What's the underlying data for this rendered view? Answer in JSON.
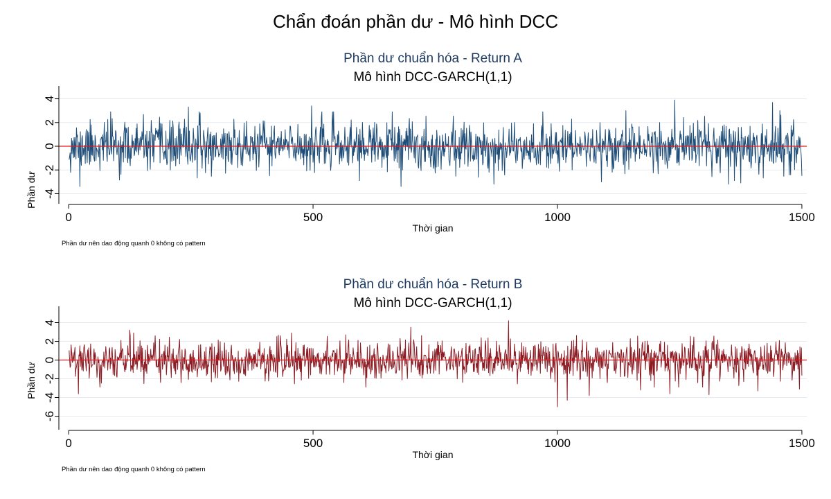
{
  "page_title": "Chẩn đoán phần dư - Mô hình DCC",
  "colors": {
    "series_a": "#1f4e79",
    "series_b": "#8b1c24",
    "zero_line": "#e41a1c",
    "grid": "#e6e9ef"
  },
  "chart_data": [
    {
      "type": "line",
      "title": "Phần dư chuẩn hóa - Return A",
      "subtitle": "Mô hình DCC-GARCH(1,1)",
      "xlabel": "Thời gian",
      "ylabel": "Phần dư",
      "note": "Phần dư nên dao động quanh 0 không có pattern",
      "xlim": [
        -20,
        1510
      ],
      "ylim": [
        -4.5,
        4.5
      ],
      "xticks": [
        0,
        500,
        1000,
        1500
      ],
      "yticks": [
        4,
        2,
        0,
        -2,
        -4
      ],
      "grid": true,
      "reference_line": 0,
      "series": [
        {
          "n": 1500,
          "seed": 11,
          "color": "#1f4e79",
          "extremes": [
            [
              23,
              -3.4
            ],
            [
              86,
              2.9
            ],
            [
              245,
              3.3
            ],
            [
              497,
              3.4
            ],
            [
              680,
              -3.4
            ],
            [
              870,
              -3.2
            ],
            [
              1090,
              -3.0
            ],
            [
              1140,
              3.0
            ],
            [
              1240,
              3.9
            ],
            [
              1350,
              -3.2
            ],
            [
              1375,
              -3.1
            ],
            [
              1440,
              3.7
            ],
            [
              1455,
              3.0
            ],
            [
              1500,
              -2.5
            ]
          ]
        }
      ]
    },
    {
      "type": "line",
      "title": "Phần dư chuẩn hóa - Return B",
      "subtitle": "Mô hình DCC-GARCH(1,1)",
      "xlabel": "Thời gian",
      "ylabel": "Phần dư",
      "note": "Phần dư nên dao động quanh 0 không có pattern",
      "xlim": [
        -20,
        1510
      ],
      "ylim": [
        -7,
        5
      ],
      "xticks": [
        0,
        500,
        1000,
        1500
      ],
      "yticks": [
        4,
        2,
        0,
        -2,
        -4,
        -6
      ],
      "grid": true,
      "reference_line": 0,
      "series": [
        {
          "n": 1500,
          "seed": 29,
          "color": "#8b1c24",
          "extremes": [
            [
              20,
              -3.6
            ],
            [
              125,
              3.2
            ],
            [
              700,
              3.5
            ],
            [
              900,
              4.2
            ],
            [
              1000,
              -5.0
            ],
            [
              1020,
              -4.3
            ],
            [
              1065,
              -3.8
            ],
            [
              1170,
              -3.2
            ],
            [
              1230,
              -3.6
            ],
            [
              1310,
              -3.7
            ],
            [
              1410,
              -3.3
            ],
            [
              1495,
              -3.1
            ]
          ]
        }
      ]
    }
  ]
}
